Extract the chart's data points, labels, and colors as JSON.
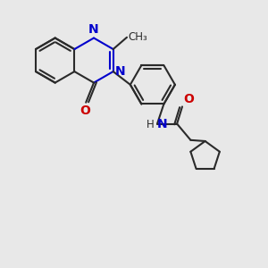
{
  "bg_color": "#e8e8e8",
  "bond_color": "#2a2a2a",
  "N_color": "#0000cc",
  "O_color": "#cc0000",
  "NH_color": "#008080",
  "line_width": 1.5,
  "font_size": 10,
  "xlim": [
    -1.5,
    8.5
  ],
  "ylim": [
    -5.5,
    3.5
  ]
}
